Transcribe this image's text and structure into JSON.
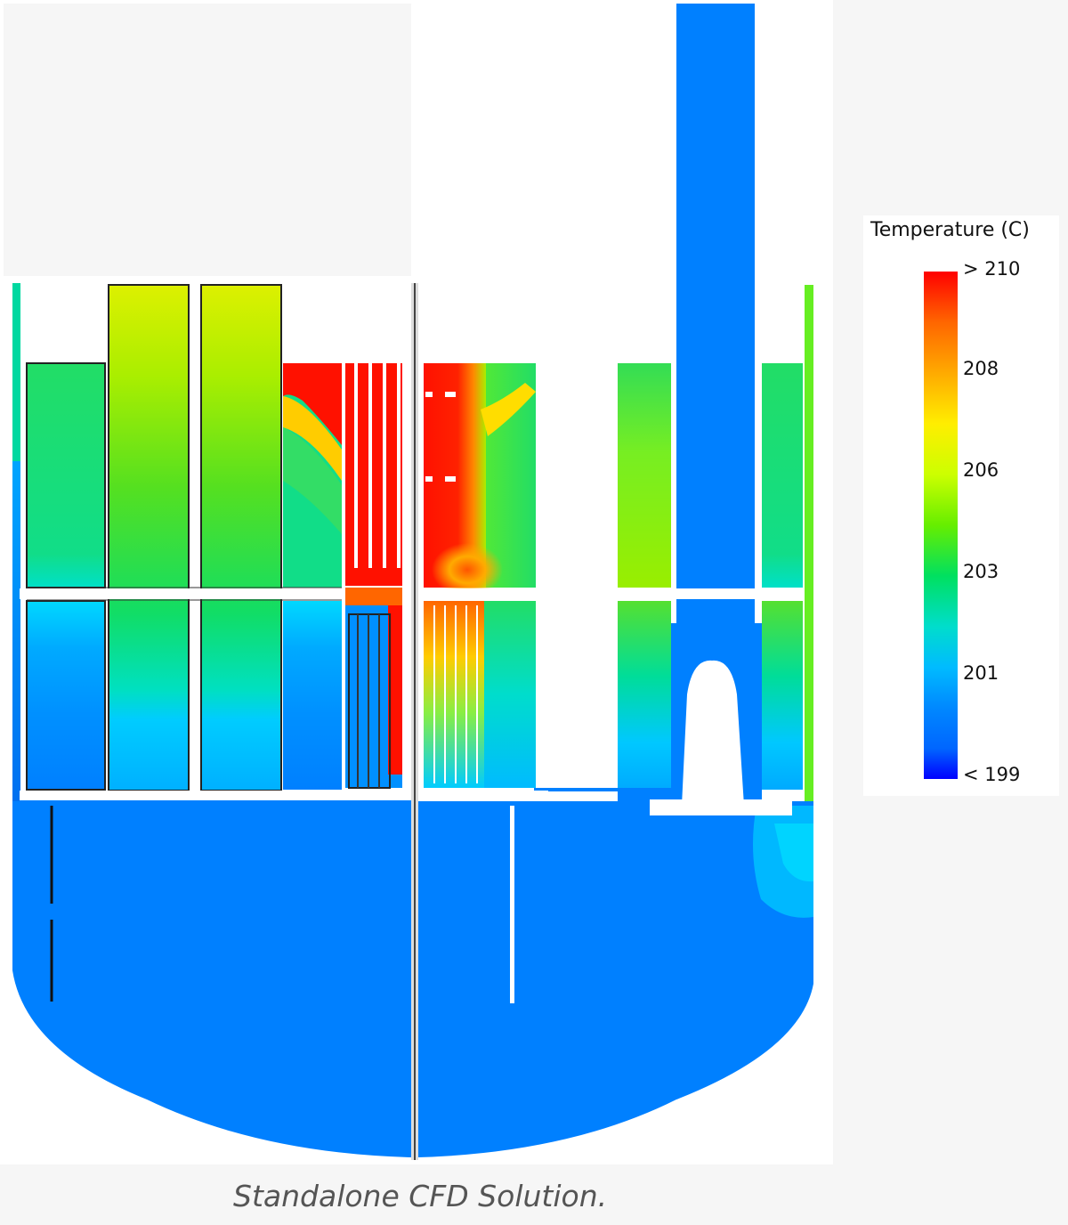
{
  "legend": {
    "title": "Temperature (C)",
    "ticks": [
      "> 210",
      "208",
      "206",
      "203",
      "201",
      "< 199"
    ],
    "colors": [
      "#ff0000",
      "#ff8800",
      "#ffee00",
      "#99ff00",
      "#00e060",
      "#00ddcc",
      "#0088ff",
      "#0000ff"
    ]
  },
  "caption": "Standalone CFD Solution."
}
